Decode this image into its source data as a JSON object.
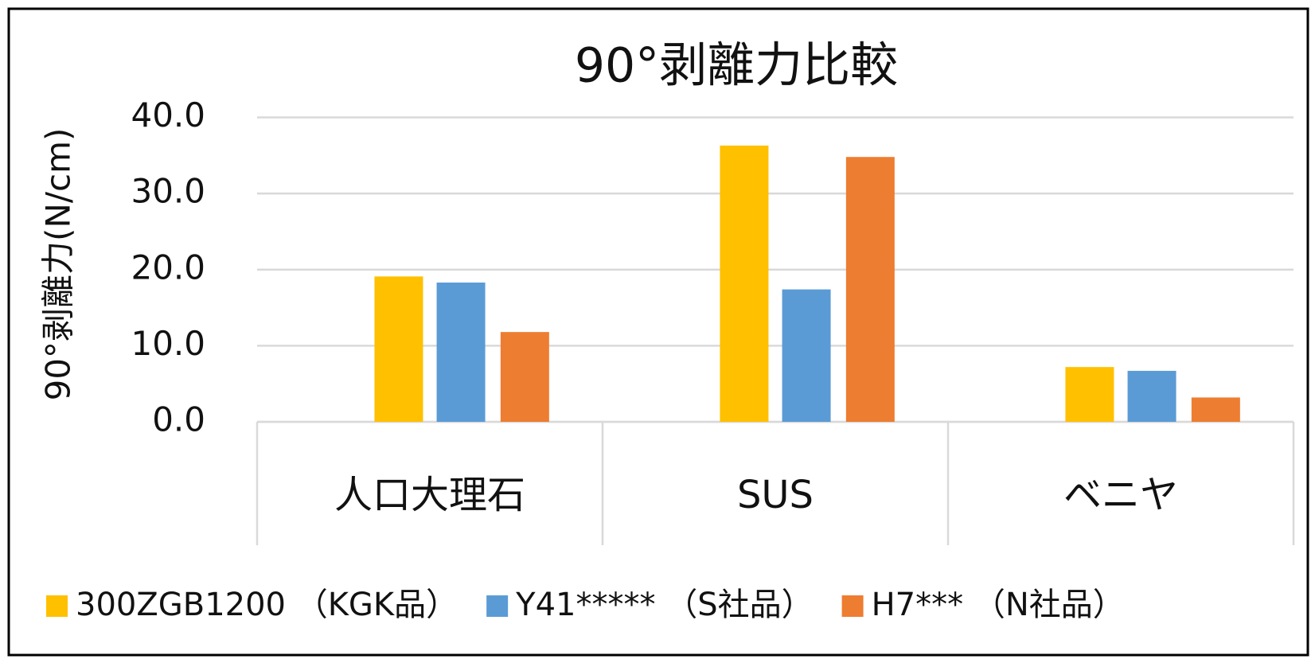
{
  "chart_data": {
    "type": "bar",
    "title": "90°剥離力比較",
    "y_label": "90°剥離力(N/cm)",
    "categories": [
      "人口大理石",
      "SUS",
      "ベニヤ"
    ],
    "series": [
      {
        "name": "300ZGB1200 （KGK品）",
        "color": "#ffc000",
        "values": [
          19.1,
          36.3,
          7.2
        ]
      },
      {
        "name": "Y41***** （S社品）",
        "color": "#5b9bd5",
        "values": [
          18.3,
          17.4,
          6.7
        ]
      },
      {
        "name": "H7*** （N社品）",
        "color": "#ed7d31",
        "values": [
          11.8,
          34.8,
          3.2
        ]
      }
    ],
    "ylim": [
      0,
      40
    ],
    "yticks": [
      {
        "value": 0,
        "label": "0.0"
      },
      {
        "value": 10,
        "label": "10.0"
      },
      {
        "value": 20,
        "label": "20.0"
      },
      {
        "value": 30,
        "label": "30.0"
      },
      {
        "value": 40,
        "label": "40.0"
      }
    ],
    "grid": true,
    "legend": "bottom"
  }
}
